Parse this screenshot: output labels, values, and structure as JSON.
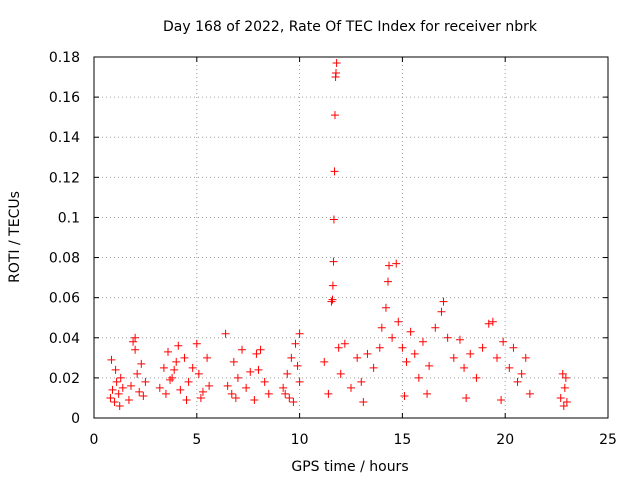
{
  "chart_data": {
    "type": "scatter",
    "title": "Day 168 of 2022, Rate Of TEC Index for receiver nbrk",
    "xlabel": "GPS time / hours",
    "ylabel": "ROTI / TECUs",
    "xlim": [
      0,
      25
    ],
    "ylim": [
      0,
      0.18
    ],
    "xticks": [
      0,
      5,
      10,
      15,
      20,
      25
    ],
    "yticks": [
      0,
      0.02,
      0.04,
      0.06,
      0.08,
      0.1,
      0.12,
      0.14,
      0.16,
      0.18
    ],
    "xtick_labels": [
      "0",
      "5",
      "10",
      "15",
      "20",
      "25"
    ],
    "ytick_labels": [
      "0",
      "0.02",
      "0.04",
      "0.06",
      "0.08",
      "0.1",
      "0.12",
      "0.14",
      "0.16",
      "0.18"
    ],
    "grid": true,
    "marker": "+",
    "color": "#ff0000",
    "series": [
      {
        "points": [
          [
            0.8,
            0.01
          ],
          [
            0.9,
            0.014
          ],
          [
            1.0,
            0.008
          ],
          [
            1.1,
            0.018
          ],
          [
            1.2,
            0.012
          ],
          [
            1.3,
            0.02
          ],
          [
            0.85,
            0.029
          ],
          [
            1.05,
            0.024
          ],
          [
            1.25,
            0.006
          ],
          [
            1.4,
            0.015
          ],
          [
            1.7,
            0.009
          ],
          [
            1.8,
            0.016
          ],
          [
            1.9,
            0.038
          ],
          [
            2.0,
            0.04
          ],
          [
            2.1,
            0.022
          ],
          [
            2.2,
            0.013
          ],
          [
            2.3,
            0.027
          ],
          [
            2.4,
            0.011
          ],
          [
            2.5,
            0.018
          ],
          [
            2.0,
            0.034
          ],
          [
            3.2,
            0.015
          ],
          [
            3.4,
            0.025
          ],
          [
            3.5,
            0.012
          ],
          [
            3.6,
            0.033
          ],
          [
            3.8,
            0.02
          ],
          [
            4.0,
            0.028
          ],
          [
            4.2,
            0.014
          ],
          [
            4.4,
            0.03
          ],
          [
            4.6,
            0.018
          ],
          [
            4.8,
            0.025
          ],
          [
            5.0,
            0.037
          ],
          [
            5.1,
            0.022
          ],
          [
            5.3,
            0.013
          ],
          [
            5.5,
            0.03
          ],
          [
            5.6,
            0.016
          ],
          [
            5.2,
            0.01
          ],
          [
            4.5,
            0.009
          ],
          [
            3.9,
            0.024
          ],
          [
            4.1,
            0.036
          ],
          [
            3.7,
            0.019
          ],
          [
            6.4,
            0.042
          ],
          [
            6.5,
            0.016
          ],
          [
            6.7,
            0.012
          ],
          [
            6.8,
            0.028
          ],
          [
            7.0,
            0.02
          ],
          [
            7.2,
            0.034
          ],
          [
            7.4,
            0.015
          ],
          [
            7.6,
            0.023
          ],
          [
            7.9,
            0.032
          ],
          [
            8.1,
            0.034
          ],
          [
            8.3,
            0.018
          ],
          [
            8.5,
            0.012
          ],
          [
            7.8,
            0.009
          ],
          [
            8.0,
            0.024
          ],
          [
            6.9,
            0.01
          ],
          [
            9.2,
            0.015
          ],
          [
            9.4,
            0.022
          ],
          [
            9.6,
            0.03
          ],
          [
            9.8,
            0.037
          ],
          [
            10.0,
            0.042
          ],
          [
            10.0,
            0.018
          ],
          [
            9.5,
            0.01
          ],
          [
            9.9,
            0.026
          ],
          [
            9.3,
            0.012
          ],
          [
            9.7,
            0.008
          ],
          [
            11.2,
            0.028
          ],
          [
            11.4,
            0.012
          ],
          [
            11.55,
            0.058
          ],
          [
            11.6,
            0.059
          ],
          [
            11.62,
            0.066
          ],
          [
            11.65,
            0.078
          ],
          [
            11.67,
            0.099
          ],
          [
            11.7,
            0.123
          ],
          [
            11.72,
            0.151
          ],
          [
            11.75,
            0.17
          ],
          [
            11.77,
            0.172
          ],
          [
            11.8,
            0.177
          ],
          [
            11.9,
            0.035
          ],
          [
            12.0,
            0.022
          ],
          [
            12.2,
            0.037
          ],
          [
            12.5,
            0.015
          ],
          [
            12.8,
            0.03
          ],
          [
            13.0,
            0.018
          ],
          [
            13.3,
            0.032
          ],
          [
            13.6,
            0.025
          ],
          [
            13.9,
            0.035
          ],
          [
            14.0,
            0.045
          ],
          [
            14.2,
            0.055
          ],
          [
            14.3,
            0.068
          ],
          [
            14.35,
            0.076
          ],
          [
            14.7,
            0.077
          ],
          [
            14.5,
            0.04
          ],
          [
            14.8,
            0.048
          ],
          [
            15.0,
            0.035
          ],
          [
            15.2,
            0.028
          ],
          [
            15.4,
            0.043
          ],
          [
            15.6,
            0.032
          ],
          [
            15.8,
            0.02
          ],
          [
            16.0,
            0.038
          ],
          [
            16.3,
            0.026
          ],
          [
            16.6,
            0.045
          ],
          [
            16.9,
            0.053
          ],
          [
            17.0,
            0.058
          ],
          [
            17.2,
            0.04
          ],
          [
            17.5,
            0.03
          ],
          [
            17.8,
            0.039
          ],
          [
            18.0,
            0.025
          ],
          [
            18.3,
            0.032
          ],
          [
            18.6,
            0.02
          ],
          [
            18.9,
            0.035
          ],
          [
            19.2,
            0.047
          ],
          [
            19.4,
            0.048
          ],
          [
            19.6,
            0.03
          ],
          [
            19.9,
            0.038
          ],
          [
            20.2,
            0.025
          ],
          [
            20.4,
            0.035
          ],
          [
            20.6,
            0.018
          ],
          [
            20.8,
            0.022
          ],
          [
            21.0,
            0.03
          ],
          [
            21.2,
            0.012
          ],
          [
            16.2,
            0.012
          ],
          [
            18.1,
            0.01
          ],
          [
            13.1,
            0.008
          ],
          [
            15.1,
            0.011
          ],
          [
            19.8,
            0.009
          ],
          [
            22.7,
            0.01
          ],
          [
            22.8,
            0.022
          ],
          [
            22.9,
            0.015
          ],
          [
            23.0,
            0.008
          ],
          [
            22.95,
            0.02
          ],
          [
            22.85,
            0.006
          ]
        ]
      }
    ]
  }
}
